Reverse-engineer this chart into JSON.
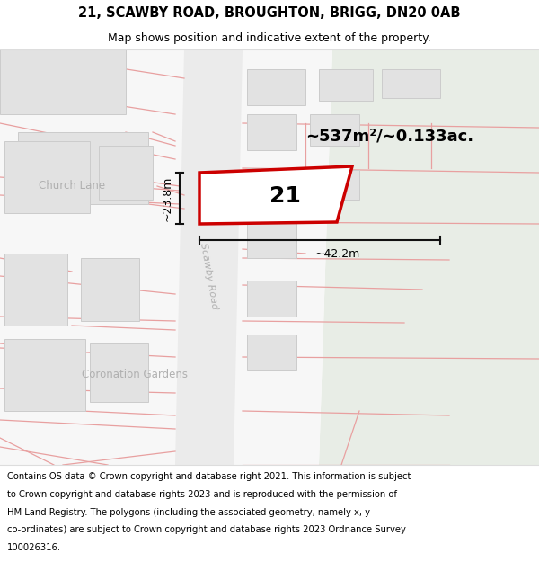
{
  "title_line1": "21, SCAWBY ROAD, BROUGHTON, BRIGG, DN20 0AB",
  "title_line2": "Map shows position and indicative extent of the property.",
  "area_text": "~537m²/~0.133ac.",
  "label_number": "21",
  "dim_width": "~42.2m",
  "dim_height": "~23.8m",
  "road_label": "Scawby Road",
  "street_label1": "Church Lane",
  "street_label2": "Coronation Gardens",
  "footer_lines": [
    "Contains OS data © Crown copyright and database right 2021. This information is subject",
    "to Crown copyright and database rights 2023 and is reproduced with the permission of",
    "HM Land Registry. The polygons (including the associated geometry, namely x, y",
    "co-ordinates) are subject to Crown copyright and database rights 2023 Ordnance Survey",
    "100026316."
  ],
  "bg_white": "#ffffff",
  "bg_light_gray": "#f2f2f2",
  "bg_green": "#e8ede6",
  "building_fill": "#e2e2e2",
  "building_edge": "#cccccc",
  "road_strip": "#ebebeb",
  "pink": "#e8a0a0",
  "plot_edge": "#cc0000",
  "dim_color": "#111111",
  "label_gray": "#aaaaaa",
  "title_fs": 10.5,
  "sub_fs": 9,
  "area_fs": 13,
  "footer_fs": 7.2,
  "num_fs": 18,
  "road_label_fs": 8,
  "street_fs": 8.5
}
